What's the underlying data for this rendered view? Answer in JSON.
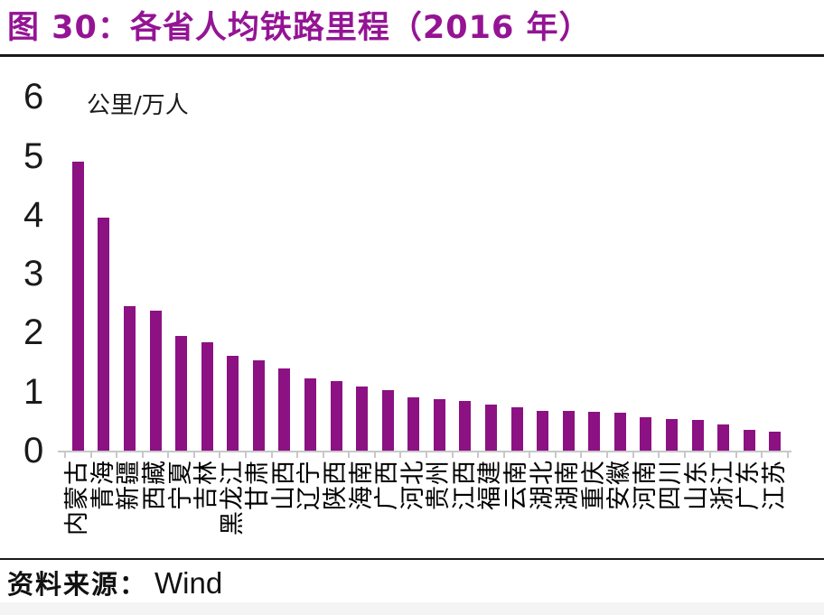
{
  "figure": {
    "title": "图 30：各省人均铁路里程（2016 年）",
    "source_label": "资料来源：",
    "source_value": "Wind"
  },
  "colors": {
    "title": "#941494",
    "bar": "#8C1182",
    "axis": "#C8C8C8",
    "rule": "#1A1A1A",
    "bottom_band": "#F4F4F4"
  },
  "chart_data": {
    "type": "bar",
    "title": "各省人均铁路里程（2016 年）",
    "unit_label": "公里/万人",
    "xlabel": "",
    "ylabel": "公里/万人",
    "ylim": [
      0,
      6
    ],
    "yticks": [
      0,
      1,
      2,
      3,
      4,
      5,
      6
    ],
    "grid": false,
    "legend": false,
    "bar_color": "#8C1182",
    "categories": [
      "内蒙古",
      "青海",
      "新疆",
      "西藏",
      "宁夏",
      "吉林",
      "黑龙江",
      "甘肃",
      "山西",
      "辽宁",
      "陕西",
      "海南",
      "广西",
      "河北",
      "贵州",
      "江西",
      "福建",
      "云南",
      "湖北",
      "湖南",
      "重庆",
      "安徽",
      "河南",
      "四川",
      "山东",
      "浙江",
      "广东",
      "江苏"
    ],
    "values": [
      4.9,
      3.95,
      2.45,
      2.38,
      1.94,
      1.84,
      1.61,
      1.53,
      1.4,
      1.23,
      1.18,
      1.09,
      1.02,
      0.9,
      0.88,
      0.84,
      0.78,
      0.73,
      0.68,
      0.67,
      0.66,
      0.64,
      0.57,
      0.53,
      0.52,
      0.44,
      0.35,
      0.32
    ]
  }
}
